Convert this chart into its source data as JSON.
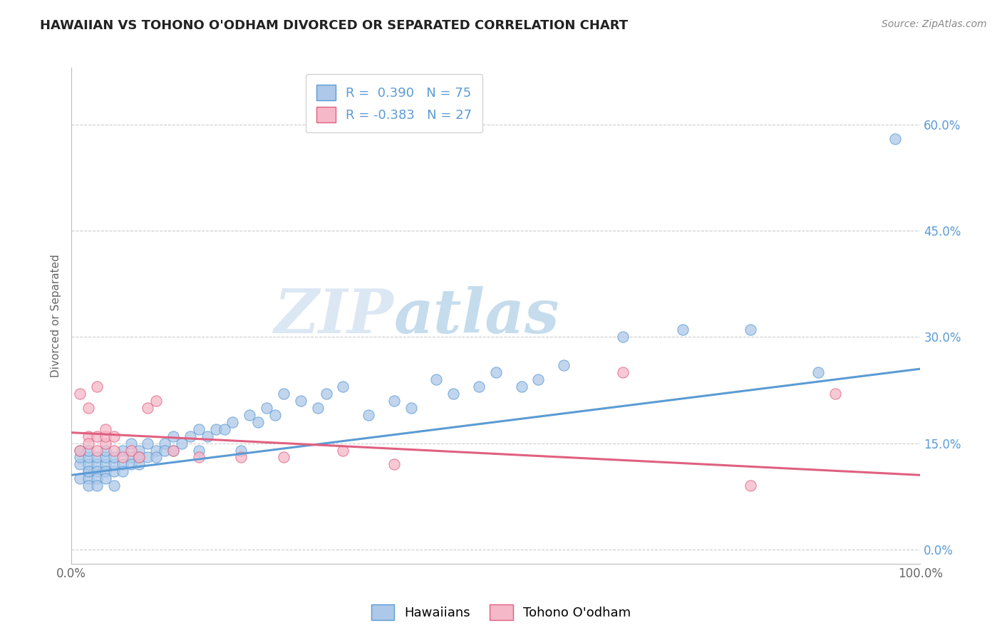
{
  "title": "HAWAIIAN VS TOHONO O'ODHAM DIVORCED OR SEPARATED CORRELATION CHART",
  "source": "Source: ZipAtlas.com",
  "ylabel": "Divorced or Separated",
  "watermark": "ZIPatlas",
  "legend_label1": "Hawaiians",
  "legend_label2": "Tohono O'odham",
  "r1": 0.39,
  "n1": 75,
  "r2": -0.383,
  "n2": 27,
  "color1": "#adc8e8",
  "color2": "#f5b8c8",
  "line_color1": "#5b9bd5",
  "line_color2": "#e06080",
  "xlim": [
    0.0,
    1.0
  ],
  "ylim": [
    -0.02,
    0.68
  ],
  "yticks": [
    0.0,
    0.15,
    0.3,
    0.45,
    0.6
  ],
  "ytick_labels": [
    "0.0%",
    "15.0%",
    "30.0%",
    "45.0%",
    "60.0%"
  ],
  "xticks": [
    0.0,
    1.0
  ],
  "xtick_labels": [
    "0.0%",
    "100.0%"
  ],
  "blue_line": [
    0.105,
    0.255
  ],
  "pink_line": [
    0.165,
    0.105
  ],
  "hawaiian_x": [
    0.01,
    0.01,
    0.01,
    0.01,
    0.02,
    0.02,
    0.02,
    0.02,
    0.02,
    0.02,
    0.02,
    0.03,
    0.03,
    0.03,
    0.03,
    0.03,
    0.04,
    0.04,
    0.04,
    0.04,
    0.04,
    0.05,
    0.05,
    0.05,
    0.05,
    0.06,
    0.06,
    0.06,
    0.07,
    0.07,
    0.07,
    0.08,
    0.08,
    0.08,
    0.09,
    0.09,
    0.1,
    0.1,
    0.11,
    0.11,
    0.12,
    0.12,
    0.13,
    0.14,
    0.15,
    0.15,
    0.16,
    0.17,
    0.18,
    0.19,
    0.2,
    0.21,
    0.22,
    0.23,
    0.24,
    0.25,
    0.27,
    0.29,
    0.3,
    0.32,
    0.35,
    0.38,
    0.4,
    0.43,
    0.45,
    0.48,
    0.5,
    0.53,
    0.55,
    0.58,
    0.65,
    0.72,
    0.8,
    0.88,
    0.97
  ],
  "hawaiian_y": [
    0.12,
    0.13,
    0.14,
    0.1,
    0.11,
    0.12,
    0.13,
    0.1,
    0.14,
    0.09,
    0.11,
    0.12,
    0.13,
    0.11,
    0.1,
    0.09,
    0.12,
    0.11,
    0.13,
    0.1,
    0.14,
    0.11,
    0.12,
    0.13,
    0.09,
    0.12,
    0.14,
    0.11,
    0.13,
    0.12,
    0.15,
    0.14,
    0.13,
    0.12,
    0.13,
    0.15,
    0.14,
    0.13,
    0.15,
    0.14,
    0.14,
    0.16,
    0.15,
    0.16,
    0.17,
    0.14,
    0.16,
    0.17,
    0.17,
    0.18,
    0.14,
    0.19,
    0.18,
    0.2,
    0.19,
    0.22,
    0.21,
    0.2,
    0.22,
    0.23,
    0.19,
    0.21,
    0.2,
    0.24,
    0.22,
    0.23,
    0.25,
    0.23,
    0.24,
    0.26,
    0.3,
    0.31,
    0.31,
    0.25,
    0.58
  ],
  "tohono_x": [
    0.01,
    0.01,
    0.02,
    0.02,
    0.02,
    0.03,
    0.03,
    0.03,
    0.04,
    0.04,
    0.04,
    0.05,
    0.05,
    0.06,
    0.07,
    0.08,
    0.09,
    0.1,
    0.12,
    0.15,
    0.2,
    0.25,
    0.32,
    0.38,
    0.65,
    0.8,
    0.9
  ],
  "tohono_y": [
    0.14,
    0.22,
    0.16,
    0.15,
    0.2,
    0.14,
    0.16,
    0.23,
    0.15,
    0.16,
    0.17,
    0.14,
    0.16,
    0.13,
    0.14,
    0.13,
    0.2,
    0.21,
    0.14,
    0.13,
    0.13,
    0.13,
    0.14,
    0.12,
    0.25,
    0.09,
    0.22
  ]
}
